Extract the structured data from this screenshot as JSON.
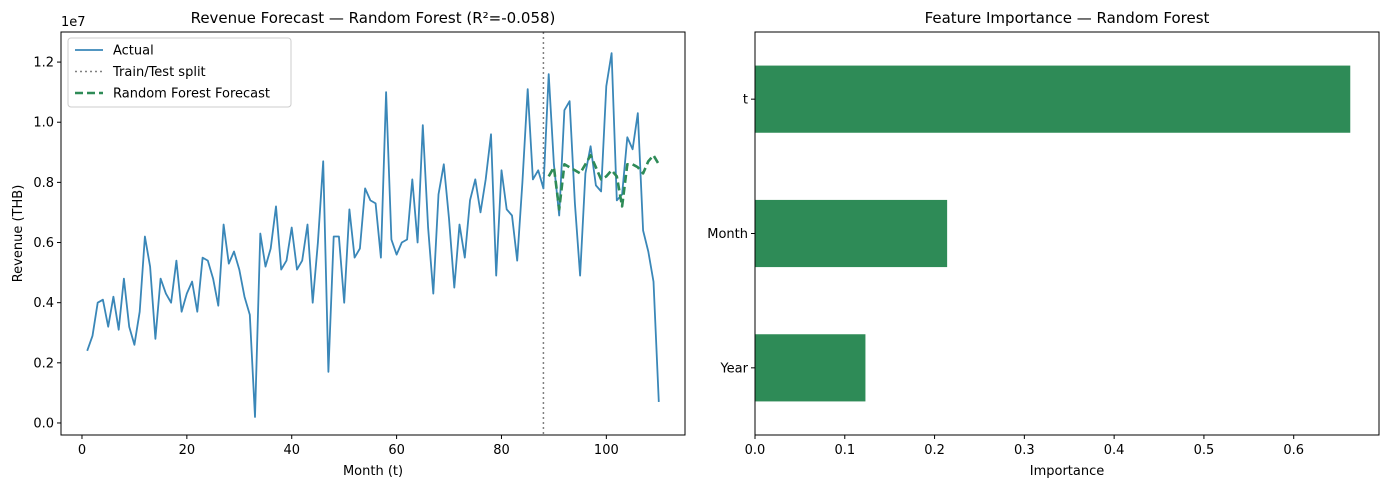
{
  "chart_data": [
    {
      "type": "line",
      "title": "Revenue Forecast — Random Forest (R²=-0.058)",
      "xlabel": "Month (t)",
      "ylabel": "Revenue (THB)",
      "y_offset_label": "1e7",
      "xlim": [
        -4,
        115
      ],
      "ylim": [
        -0.04,
        1.3
      ],
      "y_units": "1e7 THB",
      "xticks": [
        0,
        20,
        40,
        60,
        80,
        100
      ],
      "yticks": [
        "0.0",
        "0.2",
        "0.4",
        "0.6",
        "0.8",
        "1.0",
        "1.2"
      ],
      "yticks_values": [
        0,
        0.2,
        0.4,
        0.6,
        0.8,
        1.0,
        1.2
      ],
      "legend_position": "top-left",
      "grid": false,
      "split_x": 88,
      "series": [
        {
          "name": "Actual",
          "color": "#3a87b8",
          "style": "solid",
          "x": [
            1,
            2,
            3,
            4,
            5,
            6,
            7,
            8,
            9,
            10,
            11,
            12,
            13,
            14,
            15,
            16,
            17,
            18,
            19,
            20,
            21,
            22,
            23,
            24,
            25,
            26,
            27,
            28,
            29,
            30,
            31,
            32,
            33,
            34,
            35,
            36,
            37,
            38,
            39,
            40,
            41,
            42,
            43,
            44,
            45,
            46,
            47,
            48,
            49,
            50,
            51,
            52,
            53,
            54,
            55,
            56,
            57,
            58,
            59,
            60,
            61,
            62,
            63,
            64,
            65,
            66,
            67,
            68,
            69,
            70,
            71,
            72,
            73,
            74,
            75,
            76,
            77,
            78,
            79,
            80,
            81,
            82,
            83,
            84,
            85,
            86,
            87,
            88,
            89,
            90,
            91,
            92,
            93,
            94,
            95,
            96,
            97,
            98,
            99,
            100,
            101,
            102,
            103,
            104,
            105,
            106,
            107,
            108,
            109,
            110
          ],
          "values": [
            0.24,
            0.29,
            0.4,
            0.41,
            0.32,
            0.42,
            0.31,
            0.48,
            0.32,
            0.26,
            0.37,
            0.62,
            0.52,
            0.28,
            0.48,
            0.43,
            0.4,
            0.54,
            0.37,
            0.43,
            0.47,
            0.37,
            0.55,
            0.54,
            0.48,
            0.39,
            0.66,
            0.53,
            0.57,
            0.51,
            0.42,
            0.36,
            0.02,
            0.63,
            0.52,
            0.58,
            0.72,
            0.51,
            0.54,
            0.65,
            0.51,
            0.54,
            0.66,
            0.4,
            0.6,
            0.87,
            0.17,
            0.62,
            0.62,
            0.4,
            0.71,
            0.55,
            0.58,
            0.78,
            0.74,
            0.73,
            0.55,
            1.1,
            0.61,
            0.56,
            0.6,
            0.61,
            0.81,
            0.6,
            0.99,
            0.65,
            0.43,
            0.76,
            0.86,
            0.68,
            0.45,
            0.66,
            0.55,
            0.74,
            0.81,
            0.7,
            0.81,
            0.96,
            0.49,
            0.84,
            0.71,
            0.69,
            0.54,
            0.8,
            1.11,
            0.81,
            0.84,
            0.78,
            1.16,
            0.86,
            0.69,
            1.04,
            1.07,
            0.73,
            0.49,
            0.83,
            0.92,
            0.79,
            0.77,
            1.12,
            1.23,
            0.74,
            0.76,
            0.95,
            0.91,
            1.03,
            0.64,
            0.57,
            0.47,
            0.07
          ]
        },
        {
          "name": "Train/Test split",
          "color": "#808080",
          "style": "dotted"
        },
        {
          "name": "Random Forest Forecast",
          "color": "#2e8b57",
          "style": "dashed",
          "x": [
            89,
            90,
            91,
            92,
            93,
            94,
            95,
            96,
            97,
            98,
            99,
            100,
            101,
            102,
            103,
            104,
            105,
            106,
            107,
            108,
            109,
            110
          ],
          "values": [
            0.82,
            0.85,
            0.71,
            0.86,
            0.85,
            0.84,
            0.83,
            0.86,
            0.89,
            0.85,
            0.81,
            0.82,
            0.84,
            0.82,
            0.72,
            0.86,
            0.86,
            0.85,
            0.83,
            0.87,
            0.89,
            0.86
          ]
        }
      ]
    },
    {
      "type": "bar",
      "orientation": "horizontal",
      "title": "Feature Importance — Random Forest",
      "xlabel": "Importance",
      "ylabel": "",
      "categories": [
        "Year",
        "Month",
        "t"
      ],
      "values": [
        0.123,
        0.214,
        0.663
      ],
      "xlim": [
        0,
        0.695
      ],
      "xticks": [
        "0.0",
        "0.1",
        "0.2",
        "0.3",
        "0.4",
        "0.5",
        "0.6"
      ],
      "xticks_values": [
        0,
        0.1,
        0.2,
        0.3,
        0.4,
        0.5,
        0.6
      ],
      "color": "#2e8b57",
      "grid": false
    }
  ]
}
